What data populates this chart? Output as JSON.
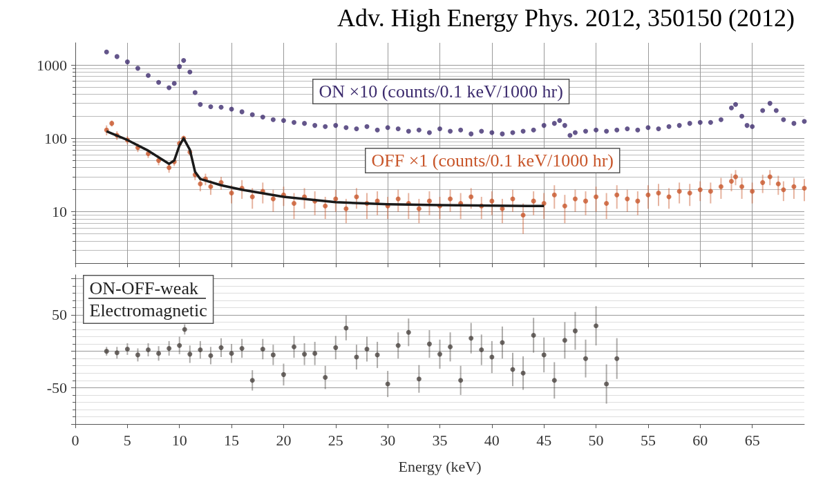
{
  "chart_data": [
    {
      "type": "scatter",
      "annotations": [
        "Adv. High Energy Phys. 2012, 350150 (2012)"
      ],
      "log": true,
      "grid": true,
      "marker": "circle",
      "tick_labels": "y",
      "xlim": [
        0,
        70
      ],
      "xticks": [
        0,
        5,
        10,
        15,
        20,
        25,
        30,
        35,
        40,
        45,
        50,
        55,
        60,
        65
      ],
      "ylim": [
        2,
        2000
      ],
      "yticks": [
        10,
        100,
        1000
      ],
      "series": [
        {
          "name": "ON ×10 (counts/0.1 keV/1000 hr)",
          "color": "#3d2c6e",
          "x": [
            3,
            4,
            5,
            6,
            7,
            8,
            9,
            9.5,
            10,
            10.4,
            11,
            11.5,
            12,
            13,
            14,
            15,
            16,
            17,
            18,
            19,
            20,
            21,
            22,
            23,
            24,
            25,
            26,
            27,
            28,
            29,
            30,
            31,
            32,
            33,
            34,
            35,
            36,
            37,
            38,
            39,
            40,
            41,
            42,
            43,
            44,
            45,
            46,
            46.5,
            47,
            47.5,
            48,
            49,
            50,
            51,
            52,
            53,
            54,
            55,
            56,
            57,
            58,
            59,
            60,
            61,
            62,
            63,
            63.4,
            64,
            64.5,
            65,
            66,
            66.7,
            67.3,
            68,
            69,
            70
          ],
          "values": [
            1500,
            1300,
            1100,
            900,
            720,
            580,
            490,
            560,
            950,
            1150,
            800,
            420,
            290,
            270,
            265,
            250,
            230,
            210,
            195,
            180,
            175,
            165,
            160,
            150,
            145,
            150,
            140,
            135,
            145,
            130,
            140,
            135,
            125,
            130,
            120,
            135,
            125,
            130,
            115,
            125,
            120,
            115,
            120,
            125,
            130,
            150,
            160,
            175,
            150,
            110,
            120,
            125,
            130,
            125,
            130,
            135,
            130,
            140,
            135,
            145,
            150,
            160,
            165,
            165,
            180,
            260,
            290,
            200,
            150,
            145,
            240,
            300,
            240,
            180,
            160,
            170
          ]
        },
        {
          "name": "OFF ×1 (counts/0.1 keV/1000 hr)",
          "color": "#c8562a",
          "x": [
            3,
            3.5,
            4,
            5,
            6,
            7,
            8,
            9,
            9.5,
            10,
            10.4,
            11,
            11.5,
            12,
            12.5,
            13,
            14,
            15,
            16,
            17,
            18,
            19,
            20,
            21,
            22,
            23,
            24,
            25,
            26,
            27,
            28,
            29,
            30,
            31,
            32,
            33,
            34,
            35,
            36,
            37,
            38,
            39,
            40,
            41,
            42,
            43,
            44,
            45,
            46,
            47,
            48,
            49,
            50,
            51,
            52,
            53,
            54,
            55,
            56,
            57,
            58,
            59,
            60,
            61,
            62,
            63,
            63.4,
            64,
            65,
            66,
            66.7,
            67.5,
            68,
            69,
            70
          ],
          "values": [
            130,
            160,
            110,
            95,
            75,
            62,
            50,
            40,
            48,
            85,
            100,
            65,
            32,
            24,
            28,
            22,
            25,
            18,
            21,
            16,
            19,
            15,
            17,
            13,
            16,
            14,
            12,
            15,
            11,
            16,
            13,
            14,
            12,
            15,
            13,
            11,
            14,
            12,
            15,
            13,
            16,
            12,
            14,
            11,
            15,
            9,
            14,
            13,
            17,
            12,
            15,
            14,
            16,
            13,
            17,
            15,
            14,
            17,
            18,
            16,
            19,
            18,
            20,
            19,
            22,
            26,
            30,
            22,
            19,
            25,
            30,
            24,
            20,
            22,
            21
          ],
          "errors": [
            20,
            15,
            15,
            12,
            10,
            8,
            7,
            6,
            6,
            8,
            9,
            7,
            5,
            5,
            5,
            5,
            5,
            5,
            6,
            5,
            6,
            5,
            5,
            5,
            5,
            5,
            4,
            5,
            4,
            5,
            5,
            5,
            4,
            5,
            5,
            4,
            5,
            4,
            5,
            5,
            5,
            4,
            5,
            4,
            5,
            4,
            5,
            5,
            6,
            5,
            5,
            5,
            6,
            5,
            6,
            5,
            5,
            6,
            6,
            5,
            6,
            6,
            6,
            6,
            7,
            7,
            7,
            7,
            6,
            7,
            7,
            7,
            6,
            7,
            7
          ]
        },
        {
          "type": "line",
          "marker": "none",
          "color": "#1a1a1a",
          "x": [
            3,
            5,
            7,
            9,
            9.5,
            10,
            10.4,
            11,
            11.5,
            12,
            14,
            16,
            20,
            25,
            30,
            35,
            40,
            45
          ],
          "values": [
            125,
            95,
            68,
            45,
            50,
            80,
            100,
            70,
            35,
            28,
            23,
            20,
            16,
            13.5,
            12.7,
            12.3,
            12.1,
            12
          ]
        }
      ]
    },
    {
      "type": "scatter",
      "xlabel": "Energy (keV)",
      "grid": "y",
      "marker": "circle",
      "xlim": [
        0,
        70
      ],
      "xticks": [
        0,
        5,
        10,
        15,
        20,
        25,
        30,
        35,
        40,
        45,
        50,
        55,
        60,
        65
      ],
      "ylim": [
        -100,
        105
      ],
      "yticks": [
        {
          "value": -100,
          "label": null
        },
        -50,
        {
          "value": 0,
          "label": null
        },
        50,
        {
          "value": 100,
          "label": null
        }
      ],
      "series": [
        {
          "name": "ON-OFF-weak\nElectromagnetic",
          "color": "#4a4440",
          "x": [
            3,
            4,
            5,
            6,
            7,
            8,
            9,
            10,
            10.5,
            11,
            12,
            13,
            14,
            15,
            16,
            17,
            18,
            19,
            20,
            21,
            22,
            23,
            24,
            25,
            26,
            27,
            28,
            29,
            30,
            31,
            32,
            33,
            34,
            35,
            36,
            37,
            38,
            39,
            40,
            41,
            42,
            43,
            44,
            45,
            46,
            47,
            48,
            49,
            50,
            51,
            52
          ],
          "values": [
            0,
            -2,
            3,
            -5,
            2,
            -3,
            4,
            8,
            30,
            -4,
            2,
            -6,
            5,
            -3,
            4,
            -40,
            3,
            -5,
            -32,
            6,
            -4,
            -3,
            -36,
            5,
            32,
            -8,
            3,
            -5,
            -45,
            8,
            26,
            -38,
            10,
            -4,
            6,
            -40,
            18,
            2,
            -8,
            12,
            -25,
            -30,
            22,
            -5,
            -40,
            15,
            28,
            -10,
            35,
            -45,
            -10
          ],
          "errors": [
            6,
            8,
            8,
            9,
            9,
            10,
            10,
            12,
            7,
            12,
            12,
            12,
            13,
            13,
            13,
            14,
            14,
            14,
            15,
            15,
            15,
            16,
            16,
            16,
            17,
            17,
            17,
            18,
            18,
            18,
            19,
            19,
            19,
            20,
            20,
            20,
            21,
            21,
            22,
            22,
            23,
            23,
            24,
            24,
            25,
            25,
            26,
            26,
            27,
            27,
            28
          ]
        }
      ]
    }
  ]
}
